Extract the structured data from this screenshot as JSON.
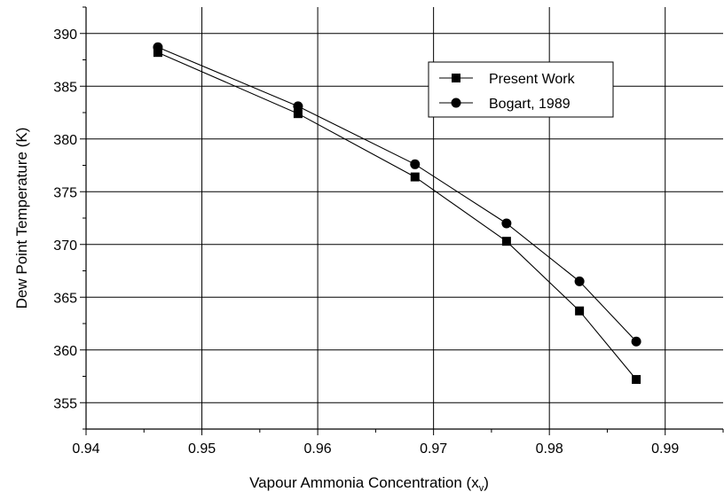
{
  "chart_data": {
    "type": "line",
    "xlabel": "Vapour Ammonia Concentration (x",
    "xlabel_subscript": "v",
    "xlabel_suffix": ")",
    "ylabel": "Dew Point Temperature (K)",
    "xlim": [
      0.94,
      0.995
    ],
    "ylim": [
      352.5,
      392.5
    ],
    "xticks": [
      "0.94",
      "0.95",
      "0.96",
      "0.97",
      "0.98",
      "0.99"
    ],
    "xtick_values": [
      0.94,
      0.95,
      0.96,
      0.97,
      0.98,
      0.99
    ],
    "yticks": [
      "355",
      "360",
      "365",
      "370",
      "375",
      "380",
      "385",
      "390"
    ],
    "ytick_values": [
      355,
      360,
      365,
      370,
      375,
      380,
      385,
      390
    ],
    "grid": true,
    "legend_position": "top-right",
    "series": [
      {
        "name": "Present Work",
        "marker": "square",
        "x": [
          0.9462,
          0.9583,
          0.9684,
          0.9763,
          0.9826,
          0.9875
        ],
        "y": [
          388.2,
          382.4,
          376.4,
          370.3,
          363.7,
          357.2
        ]
      },
      {
        "name": "Bogart, 1989",
        "marker": "circle",
        "x": [
          0.9462,
          0.9583,
          0.9684,
          0.9763,
          0.9826,
          0.9875
        ],
        "y": [
          388.7,
          383.1,
          377.6,
          372.0,
          366.5,
          360.8
        ]
      }
    ]
  },
  "colors": {
    "line": "#000000",
    "grid": "#000000",
    "background": "#ffffff"
  }
}
